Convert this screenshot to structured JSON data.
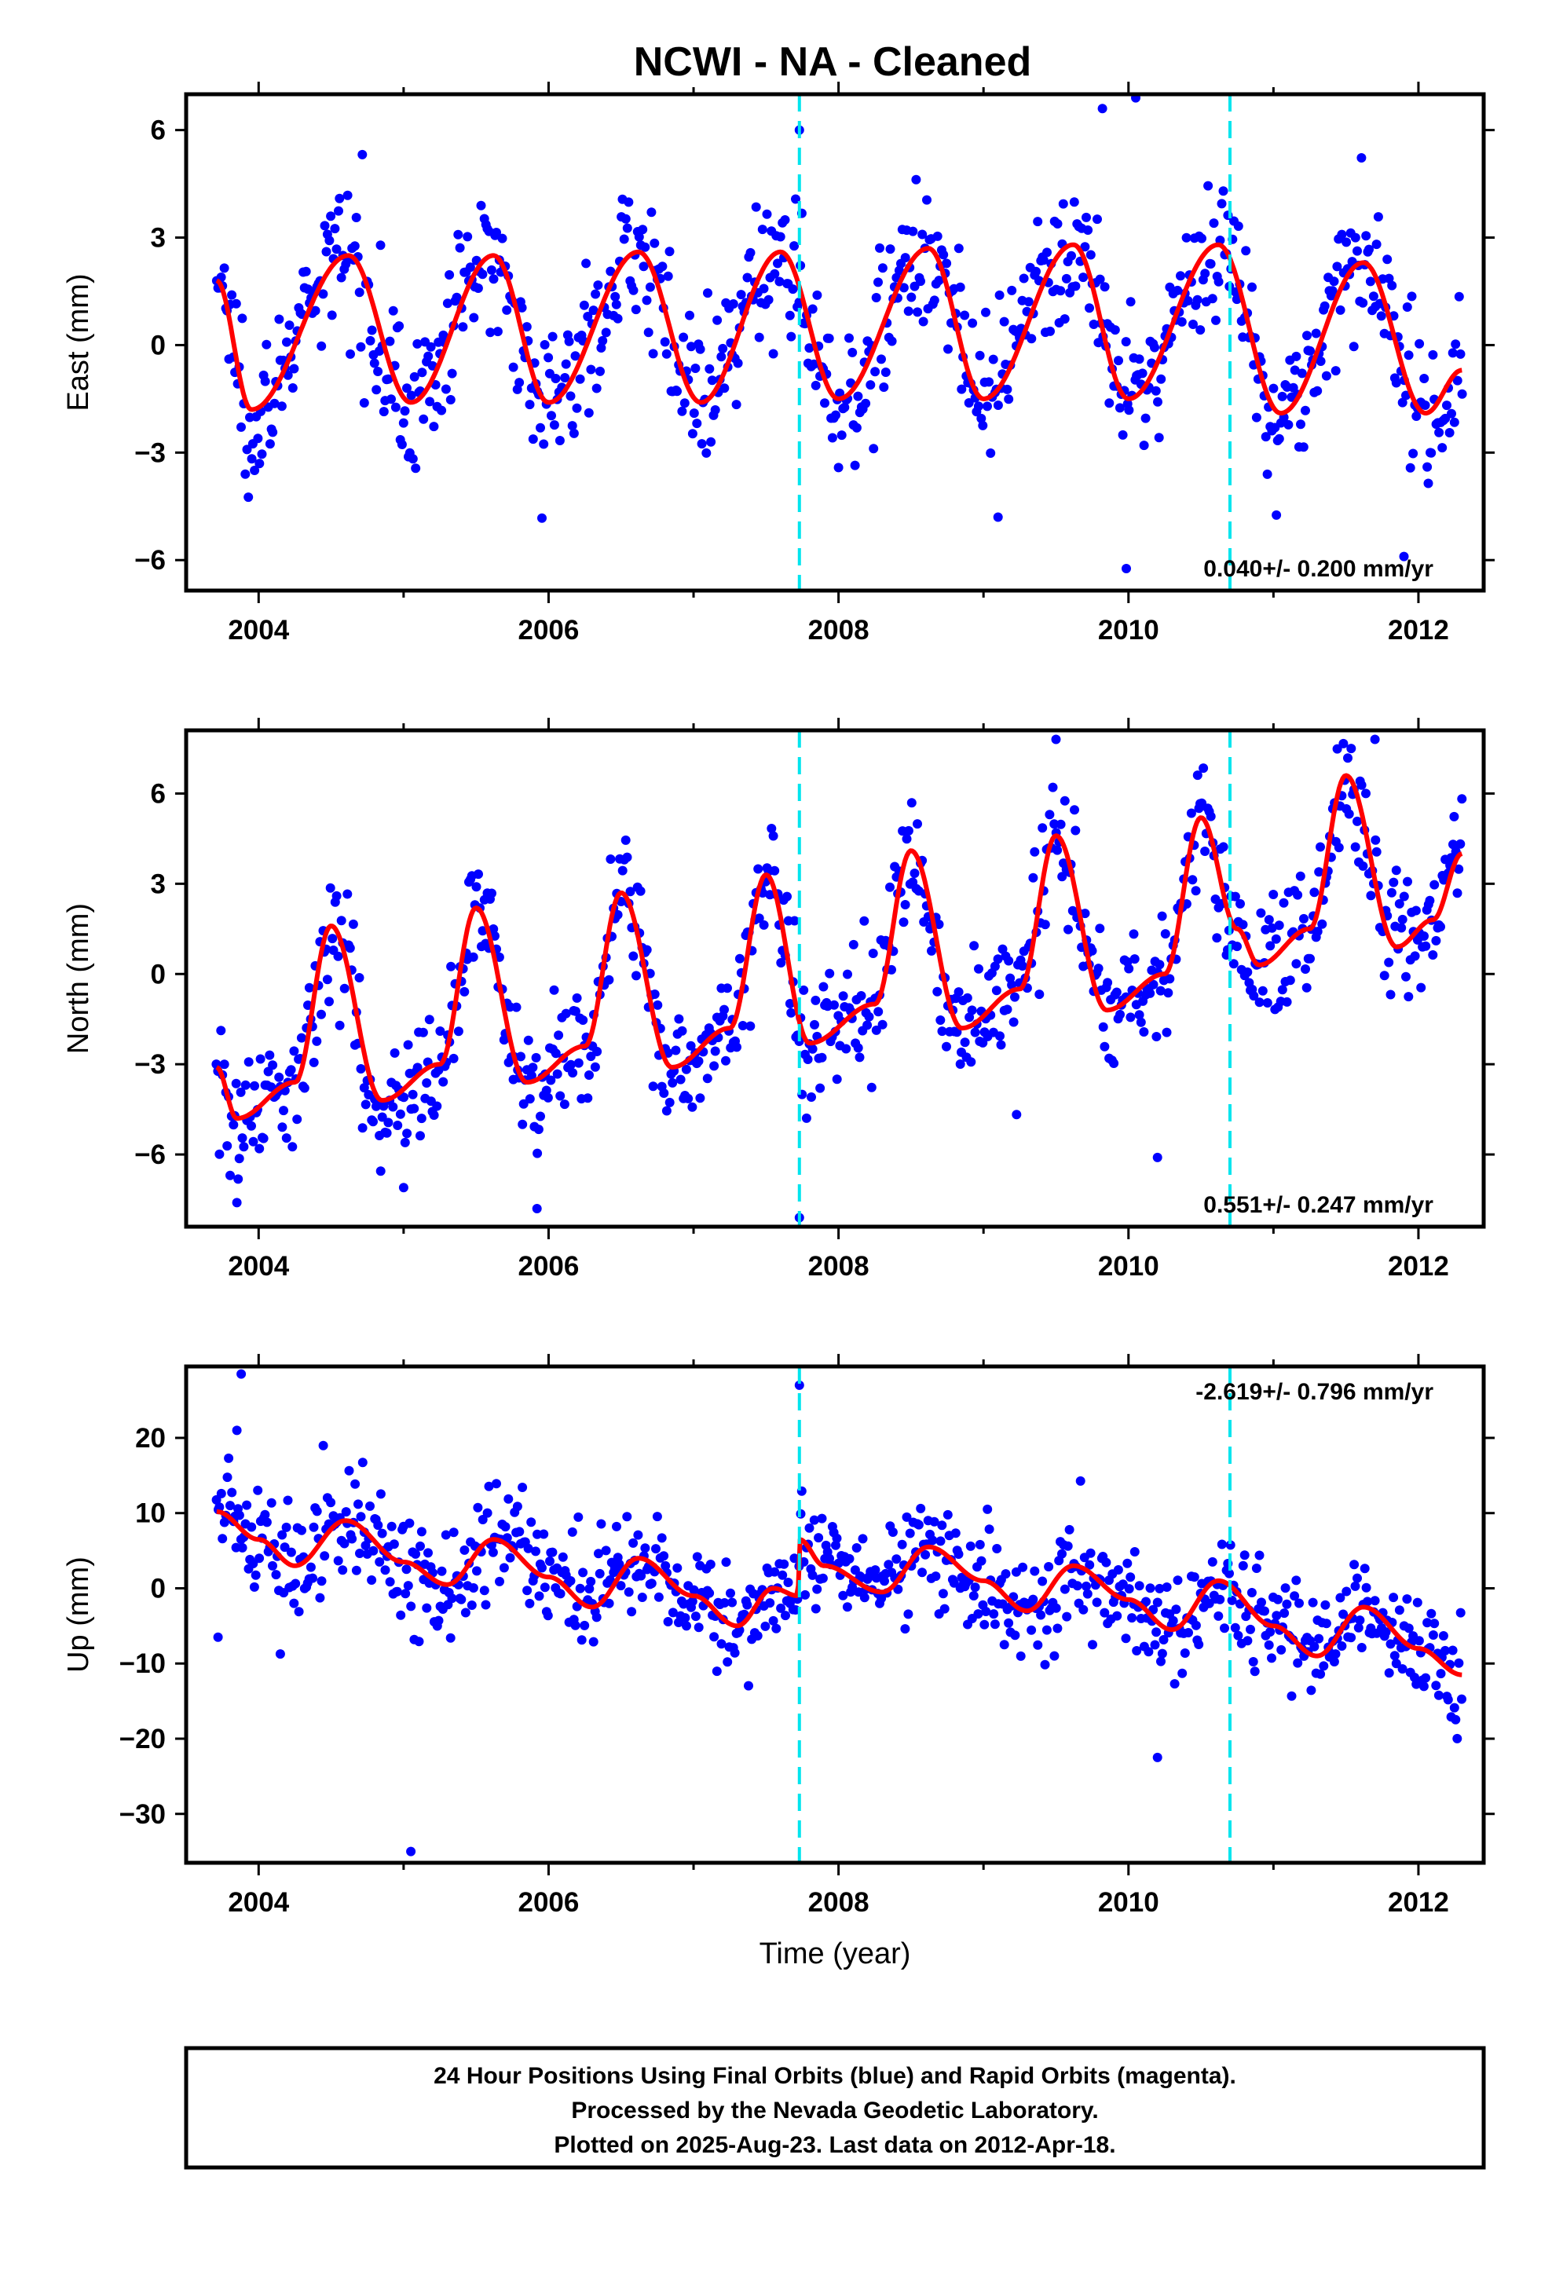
{
  "page_title": "NCWI  - NA - Cleaned",
  "colors": {
    "final_orbits": "#0000ff",
    "model_fit": "#ff0000",
    "event_line": "#00e5ee",
    "frame": "#000000"
  },
  "chart_data": [
    {
      "type": "scatter",
      "panel": "east",
      "title": "",
      "xlabel": "",
      "ylabel": "East (mm)",
      "xlim": [
        2003.5,
        2012.45
      ],
      "ylim": [
        -6.85,
        7.0
      ],
      "x_ticks": [
        2004,
        2006,
        2008,
        2010,
        2012
      ],
      "x_tick_labels": [
        "2004",
        "2006",
        "2008",
        "2010",
        "2012"
      ],
      "y_ticks": [
        -6,
        -3,
        0,
        3,
        6
      ],
      "y_tick_labels": [
        "−6",
        "−3",
        "0",
        "3",
        "6"
      ],
      "rate_text": "0.040+/- 0.200 mm/yr",
      "rate_position": "bottom-right",
      "event_lines_x": [
        2007.73,
        2010.7
      ],
      "model": {
        "start": 2003.71,
        "end": 2012.3,
        "base": -1.7,
        "trend": 0.08,
        "amp": 2.1,
        "peak_phase": 0.62,
        "key_points": [
          [
            2003.71,
            1.8
          ],
          [
            2003.95,
            -1.8
          ],
          [
            2004.62,
            2.5
          ],
          [
            2005.05,
            -1.6
          ],
          [
            2005.62,
            2.5
          ],
          [
            2006.0,
            -1.6
          ],
          [
            2006.62,
            2.6
          ],
          [
            2007.05,
            -1.6
          ],
          [
            2007.6,
            2.6
          ],
          [
            2008.0,
            -1.5
          ],
          [
            2008.62,
            2.7
          ],
          [
            2009.0,
            -1.5
          ],
          [
            2009.62,
            2.8
          ],
          [
            2010.0,
            -1.5
          ],
          [
            2010.62,
            2.8
          ],
          [
            2011.05,
            -1.9
          ],
          [
            2011.62,
            2.3
          ],
          [
            2012.05,
            -1.9
          ],
          [
            2012.3,
            -0.7
          ]
        ]
      },
      "series": [
        {
          "type": "scatter",
          "name": "Final Orbits",
          "color": "#0000ff",
          "spread": 1.0,
          "n": 820
        },
        {
          "type": "line",
          "name": "",
          "color": "#ff0000"
        }
      ],
      "outliers": [
        [
          2010.05,
          6.9
        ],
        [
          2009.82,
          6.6
        ],
        [
          2007.73,
          6.0
        ],
        [
          2011.9,
          -5.9
        ],
        [
          2009.1,
          -4.8
        ]
      ]
    },
    {
      "type": "scatter",
      "panel": "north",
      "title": "",
      "xlabel": "",
      "ylabel": "North (mm)",
      "xlim": [
        2003.5,
        2012.45
      ],
      "ylim": [
        -8.4,
        8.1
      ],
      "x_ticks": [
        2004,
        2006,
        2008,
        2010,
        2012
      ],
      "x_tick_labels": [
        "2004",
        "2006",
        "2008",
        "2010",
        "2012"
      ],
      "y_ticks": [
        -6,
        -3,
        0,
        3,
        6
      ],
      "y_tick_labels": [
        "−6",
        "−3",
        "0",
        "3",
        "6"
      ],
      "rate_text": "0.551+/- 0.247 mm/yr",
      "rate_position": "bottom-right",
      "event_lines_x": [
        2007.73,
        2010.7
      ],
      "model": {
        "key_points": [
          [
            2003.71,
            -3.1
          ],
          [
            2003.85,
            -4.8
          ],
          [
            2004.25,
            -3.6
          ],
          [
            2004.5,
            1.6
          ],
          [
            2004.85,
            -4.2
          ],
          [
            2005.25,
            -3.0
          ],
          [
            2005.5,
            2.2
          ],
          [
            2005.85,
            -3.6
          ],
          [
            2006.25,
            -2.4
          ],
          [
            2006.5,
            2.7
          ],
          [
            2006.85,
            -3.1
          ],
          [
            2007.25,
            -1.8
          ],
          [
            2007.5,
            3.3
          ],
          [
            2007.8,
            -2.3
          ],
          [
            2008.25,
            -1.0
          ],
          [
            2008.5,
            4.1
          ],
          [
            2008.85,
            -1.8
          ],
          [
            2009.25,
            -0.5
          ],
          [
            2009.5,
            4.6
          ],
          [
            2009.85,
            -1.2
          ],
          [
            2010.25,
            0.0
          ],
          [
            2010.5,
            5.2
          ],
          [
            2010.75,
            1.5
          ],
          [
            2010.9,
            0.3
          ],
          [
            2011.25,
            1.5
          ],
          [
            2011.5,
            6.6
          ],
          [
            2011.85,
            0.9
          ],
          [
            2012.1,
            1.8
          ],
          [
            2012.3,
            4.0
          ]
        ]
      },
      "series": [
        {
          "type": "scatter",
          "name": "Final Orbits",
          "color": "#0000ff",
          "spread": 1.05,
          "n": 820
        },
        {
          "type": "line",
          "name": "",
          "color": "#ff0000"
        }
      ],
      "outliers": [
        [
          2003.85,
          -7.6
        ],
        [
          2005.0,
          -7.1
        ],
        [
          2005.92,
          -7.8
        ],
        [
          2007.73,
          -8.1
        ],
        [
          2010.2,
          -6.1
        ],
        [
          2011.7,
          7.8
        ],
        [
          2009.5,
          7.8
        ]
      ]
    },
    {
      "type": "scatter",
      "panel": "up",
      "title": "",
      "xlabel": "Time (year)",
      "ylabel": "Up (mm)",
      "xlim": [
        2003.5,
        2012.45
      ],
      "ylim": [
        -36.5,
        29.5
      ],
      "x_ticks": [
        2004,
        2006,
        2008,
        2010,
        2012
      ],
      "x_tick_labels": [
        "2004",
        "2006",
        "2008",
        "2010",
        "2012"
      ],
      "y_ticks": [
        -30,
        -20,
        -10,
        0,
        10,
        20
      ],
      "y_tick_labels": [
        "−30",
        "−20",
        "−10",
        "0",
        "10",
        "20"
      ],
      "rate_text": "-2.619+/- 0.796 mm/yr",
      "rate_position": "top-right",
      "event_lines_x": [
        2007.73,
        2010.7
      ],
      "model": {
        "key_points": [
          [
            2003.71,
            10.2
          ],
          [
            2004.0,
            6.5
          ],
          [
            2004.25,
            3.0
          ],
          [
            2004.6,
            9.0
          ],
          [
            2005.0,
            3.5
          ],
          [
            2005.3,
            0.5
          ],
          [
            2005.62,
            6.5
          ],
          [
            2006.0,
            1.5
          ],
          [
            2006.3,
            -2.5
          ],
          [
            2006.62,
            4.0
          ],
          [
            2007.0,
            -1.0
          ],
          [
            2007.3,
            -5.0
          ],
          [
            2007.55,
            0.0
          ],
          [
            2007.72,
            -1.0
          ],
          [
            2007.73,
            6.5
          ],
          [
            2007.9,
            3.0
          ],
          [
            2008.3,
            -0.5
          ],
          [
            2008.62,
            5.5
          ],
          [
            2009.0,
            1.0
          ],
          [
            2009.3,
            -3.0
          ],
          [
            2009.62,
            3.0
          ],
          [
            2010.0,
            -1.5
          ],
          [
            2010.3,
            -5.5
          ],
          [
            2010.62,
            1.0
          ],
          [
            2011.0,
            -5.0
          ],
          [
            2011.3,
            -9.0
          ],
          [
            2011.62,
            -2.5
          ],
          [
            2012.0,
            -8.0
          ],
          [
            2012.3,
            -11.5
          ]
        ]
      },
      "series": [
        {
          "type": "scatter",
          "name": "Final Orbits",
          "color": "#0000ff",
          "spread": 3.6,
          "n": 820
        },
        {
          "type": "line",
          "name": "",
          "color": "#ff0000"
        }
      ],
      "outliers": [
        [
          2003.88,
          28.5
        ],
        [
          2003.85,
          21.0
        ],
        [
          2005.05,
          -35.0
        ],
        [
          2010.2,
          -22.5
        ],
        [
          2007.73,
          27.0
        ],
        [
          2003.72,
          -6.5
        ]
      ]
    }
  ],
  "caption": {
    "line1": "24 Hour Positions Using Final Orbits (blue) and Rapid Orbits (magenta).",
    "line2": "Processed by the Nevada Geodetic Laboratory.",
    "line3": "Plotted on 2025-Aug-23. Last data on 2012-Apr-18."
  }
}
